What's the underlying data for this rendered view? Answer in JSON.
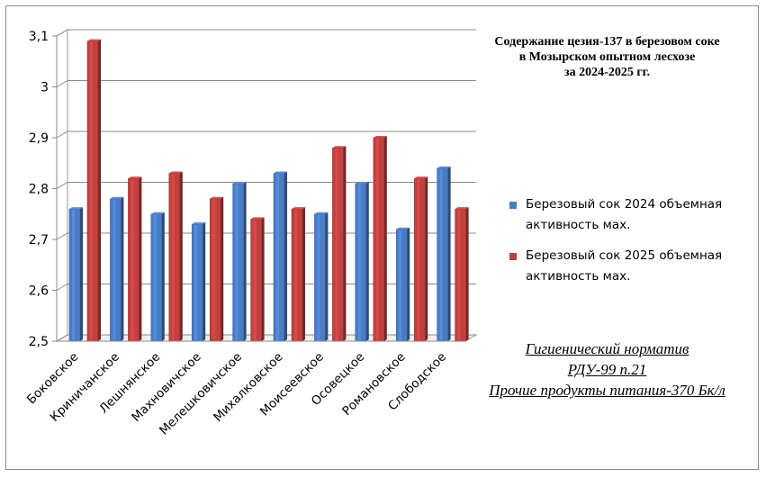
{
  "chart_data": {
    "type": "bar",
    "title": [
      "Содержание цезия-137 в березовом соке",
      "в Мозырском опытном лесхозе",
      "за 2024-2025 гг."
    ],
    "categories": [
      "Боковское",
      "Криничанское",
      "Лешнянское",
      "Махновичское",
      "Мелешковичское",
      "Михалковское",
      "Моисеевское",
      "Осовецкое",
      "Романовское",
      "Слободское"
    ],
    "series": [
      {
        "name": "Березовый сок 2024 объемная активность мах.",
        "color": "#4a7cc4",
        "values": [
          2.76,
          2.78,
          2.75,
          2.73,
          2.81,
          2.83,
          2.75,
          2.81,
          2.72,
          2.84
        ]
      },
      {
        "name": "Березовый сок 2025 объемная активность мах.",
        "color": "#c0413f",
        "values": [
          3.09,
          2.82,
          2.83,
          2.78,
          2.74,
          2.76,
          2.88,
          2.9,
          2.82,
          2.76
        ]
      }
    ],
    "yticks": [
      "2,5",
      "2,6",
      "2,7",
      "2,8",
      "2,9",
      "3",
      "3,1"
    ],
    "ylim": [
      2.5,
      3.1
    ],
    "xlabel": "",
    "ylabel": "",
    "legend": "right",
    "grid": true
  },
  "note": [
    "Гигиенический норматив",
    "РДУ-99 п.21",
    "Прочие продукты питания-370 Бк/л"
  ]
}
